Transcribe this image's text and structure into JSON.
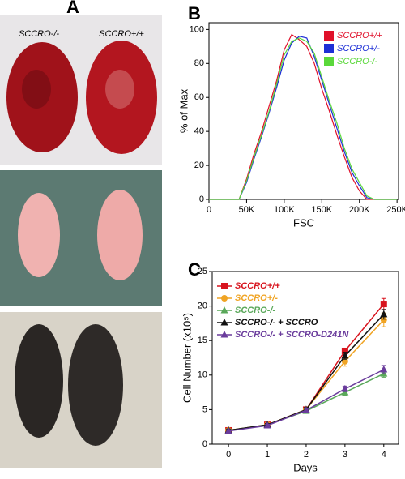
{
  "panel_a": {
    "panel_label": "A",
    "labels": [
      "SCCRO-/-",
      "SCCRO+/+"
    ]
  },
  "chart_data": [
    {
      "type": "line",
      "panel_label": "B",
      "xlabel": "FSC",
      "ylabel": "% of Max",
      "x": [
        0,
        10000,
        20000,
        30000,
        40000,
        50000,
        60000,
        70000,
        80000,
        90000,
        100000,
        110000,
        120000,
        130000,
        140000,
        150000,
        160000,
        170000,
        180000,
        190000,
        200000,
        210000,
        220000,
        230000,
        240000,
        250000
      ],
      "series": [
        {
          "name": "SCCRO+/+",
          "color": "#e0102a",
          "values": [
            0,
            0,
            0,
            0,
            0,
            12,
            27,
            40,
            55,
            70,
            88,
            97,
            94,
            90,
            80,
            65,
            52,
            38,
            25,
            13,
            5,
            0,
            0,
            0,
            0,
            0
          ]
        },
        {
          "name": "SCCRO+/-",
          "color": "#1d2fd6",
          "values": [
            0,
            0,
            0,
            0,
            0,
            10,
            24,
            37,
            51,
            66,
            82,
            92,
            96,
            95,
            84,
            70,
            56,
            42,
            28,
            16,
            8,
            1,
            0,
            0,
            0,
            0
          ]
        },
        {
          "name": "SCCRO-/-",
          "color": "#5ad83a",
          "values": [
            0,
            0,
            0,
            0,
            0,
            11,
            25,
            38,
            52,
            68,
            85,
            93,
            95,
            93,
            86,
            72,
            58,
            45,
            30,
            18,
            10,
            2,
            0,
            0,
            0,
            0
          ]
        }
      ],
      "xlim": [
        0,
        252000
      ],
      "ylim": [
        0,
        104
      ],
      "xticks": [
        0,
        {
          "value": 50000,
          "label": "50K"
        },
        {
          "value": 100000,
          "label": "100K"
        },
        {
          "value": 150000,
          "label": "150K"
        },
        {
          "value": 200000,
          "label": "200K"
        },
        {
          "value": 250000,
          "label": "250K"
        }
      ],
      "yticks": [
        0,
        20,
        40,
        60,
        80,
        100
      ]
    },
    {
      "type": "errorline",
      "panel_label": "C",
      "xlabel": "Days",
      "ylabel": "Cell Number (x10⁵)",
      "x": [
        0,
        1,
        2,
        3,
        4
      ],
      "series": [
        {
          "name": "SCCRO+/+",
          "color": "#d8141e",
          "marker": "square",
          "values": [
            2,
            2.8,
            5,
            13.5,
            20.3
          ],
          "errors": [
            0.2,
            0.2,
            0.3,
            0.4,
            0.8
          ]
        },
        {
          "name": "SCCRO+/-",
          "color": "#f0a424",
          "marker": "circle",
          "values": [
            2,
            2.8,
            5,
            12,
            18
          ],
          "errors": [
            0.2,
            0.2,
            0.3,
            0.7,
            1
          ]
        },
        {
          "name": "SCCRO-/-",
          "color": "#5aa85a",
          "marker": "triangle",
          "values": [
            2,
            2.8,
            4.8,
            7.5,
            10.2
          ],
          "errors": [
            0.2,
            0.2,
            0.3,
            0.4,
            0.5
          ]
        },
        {
          "name": "SCCRO-/- + SCCRO",
          "color": "#111111",
          "marker": "triangle",
          "values": [
            2,
            2.8,
            5,
            12.8,
            18.8
          ],
          "errors": [
            0.2,
            0.2,
            0.3,
            0.5,
            0.7
          ]
        },
        {
          "name": "SCCRO-/- + SCCRO-D241N",
          "color": "#6a3c9c",
          "marker": "triangle",
          "values": [
            1.9,
            2.7,
            4.9,
            8,
            10.8
          ],
          "errors": [
            0.2,
            0.2,
            0.3,
            0.4,
            0.6
          ]
        }
      ],
      "xlim": [
        -0.42,
        4.38
      ],
      "ylim": [
        0,
        25
      ],
      "xticks": [
        0,
        1,
        2,
        3,
        4
      ],
      "yticks": [
        0,
        5,
        10,
        15,
        20,
        25
      ]
    }
  ]
}
